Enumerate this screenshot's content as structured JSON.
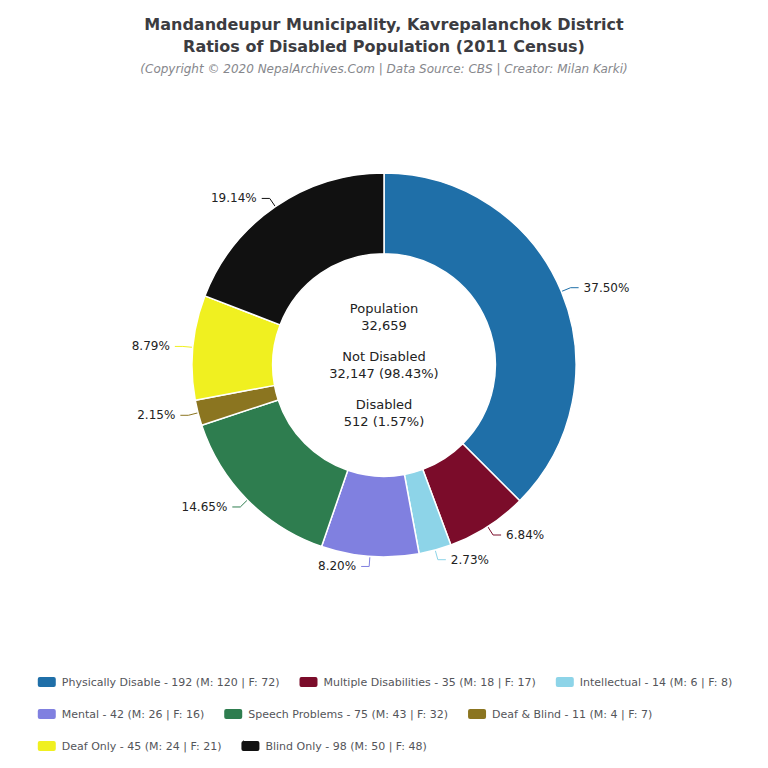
{
  "chart_data": {
    "type": "pie",
    "title": "Mandandeupur Municipality, Kavrepalanchok District\nRatios of Disabled Population (2011 Census)",
    "subtitle": "(Copyright © 2020 NepalArchives.Com | Data Source: CBS | Creator: Milan Karki)",
    "categories": [
      "Physically Disable - 192 (M: 120 | F: 72)",
      "Multiple Disabilities - 35 (M: 18 | F: 17)",
      "Intellectual - 14 (M: 6 | F: 8)",
      "Mental - 42 (M: 26 | F: 16)",
      "Speech Problems - 75 (M: 43 | F: 32)",
      "Deaf & Blind - 11 (M: 4 | F: 7)",
      "Deaf Only - 45 (M: 24 | F: 21)",
      "Blind Only - 98 (M: 50 | F: 48)"
    ],
    "values": [
      37.5,
      6.84,
      2.73,
      8.2,
      14.65,
      2.15,
      8.79,
      19.14
    ],
    "value_labels": [
      "37.50%",
      "6.84%",
      "2.73%",
      "8.20%",
      "14.65%",
      "2.15%",
      "8.79%",
      "19.14%"
    ],
    "colors": [
      "#1f6fa8",
      "#7b0c2a",
      "#8dd4e8",
      "#8080e0",
      "#2e7d4f",
      "#8b7520",
      "#f0f020",
      "#111111"
    ],
    "annotations": [
      "Population\n32,659",
      "Not Disabled\n32,147 (98.43%)",
      "Disabled\n512 (1.57%)"
    ],
    "legend": "bottom",
    "data_labels": true
  }
}
